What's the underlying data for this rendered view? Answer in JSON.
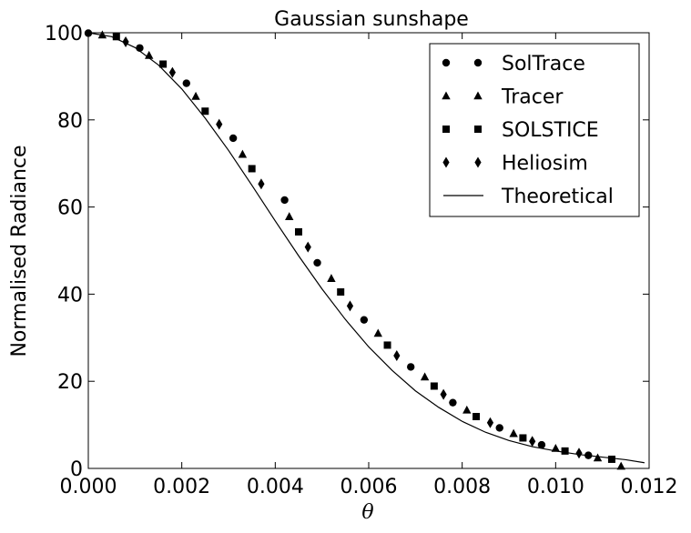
{
  "chart_data": {
    "type": "scatter",
    "title": "Gaussian sunshape",
    "xlabel": "θ",
    "ylabel": "Normalised Radiance",
    "xlim": [
      0.0,
      0.012
    ],
    "ylim": [
      0,
      100
    ],
    "xticks": [
      "0.000",
      "0.002",
      "0.004",
      "0.006",
      "0.008",
      "0.010",
      "0.012"
    ],
    "yticks": [
      "0",
      "20",
      "40",
      "60",
      "80",
      "100"
    ],
    "legend_position": "top-right",
    "series": [
      {
        "name": "SolTrace",
        "marker": "circle",
        "x": [
          0.0,
          0.0011,
          0.0021,
          0.0031,
          0.0042,
          0.0049,
          0.0059,
          0.0069,
          0.0078,
          0.0088,
          0.0097,
          0.0107
        ],
        "y": [
          99.9,
          96.5,
          88.4,
          75.8,
          61.6,
          47.2,
          34.1,
          23.3,
          15.1,
          9.3,
          5.4,
          3.0
        ]
      },
      {
        "name": "Tracer",
        "marker": "triangle",
        "x": [
          0.0003,
          0.0013,
          0.0023,
          0.0033,
          0.0043,
          0.0052,
          0.0062,
          0.0072,
          0.0081,
          0.0091,
          0.01,
          0.0109,
          0.0114
        ],
        "y": [
          99.5,
          94.8,
          85.4,
          72.1,
          57.8,
          43.6,
          31.0,
          21.0,
          13.4,
          8.0,
          4.6,
          2.4,
          0.5
        ]
      },
      {
        "name": "SOLSTICE",
        "marker": "square",
        "x": [
          0.0006,
          0.0016,
          0.0025,
          0.0035,
          0.0045,
          0.0054,
          0.0064,
          0.0074,
          0.0083,
          0.0093,
          0.0102,
          0.0112
        ],
        "y": [
          99.1,
          92.8,
          82.0,
          68.8,
          54.3,
          40.5,
          28.3,
          18.9,
          11.9,
          7.0,
          4.0,
          2.1
        ]
      },
      {
        "name": "Heliosim",
        "marker": "diamond",
        "x": [
          0.0008,
          0.0018,
          0.0028,
          0.0037,
          0.0047,
          0.0056,
          0.0066,
          0.0076,
          0.0086,
          0.0095,
          0.0105
        ],
        "y": [
          97.9,
          90.9,
          79.0,
          65.3,
          50.8,
          37.3,
          25.9,
          17.0,
          10.5,
          6.2,
          3.5
        ]
      },
      {
        "name": "Theoretical",
        "marker": "line",
        "x": [
          0.0,
          0.0005,
          0.001,
          0.0015,
          0.002,
          0.0025,
          0.003,
          0.0035,
          0.004,
          0.0045,
          0.005,
          0.0055,
          0.006,
          0.0065,
          0.007,
          0.0075,
          0.008,
          0.0085,
          0.009,
          0.0095,
          0.01,
          0.0105,
          0.011,
          0.0115,
          0.0119
        ],
        "y": [
          100.0,
          99.1,
          96.6,
          92.6,
          87.1,
          80.4,
          73.0,
          65.0,
          56.8,
          48.8,
          41.2,
          34.2,
          27.9,
          22.5,
          17.8,
          14.0,
          10.8,
          8.3,
          6.4,
          5.0,
          4.0,
          3.2,
          2.6,
          2.0,
          1.3
        ]
      }
    ]
  }
}
